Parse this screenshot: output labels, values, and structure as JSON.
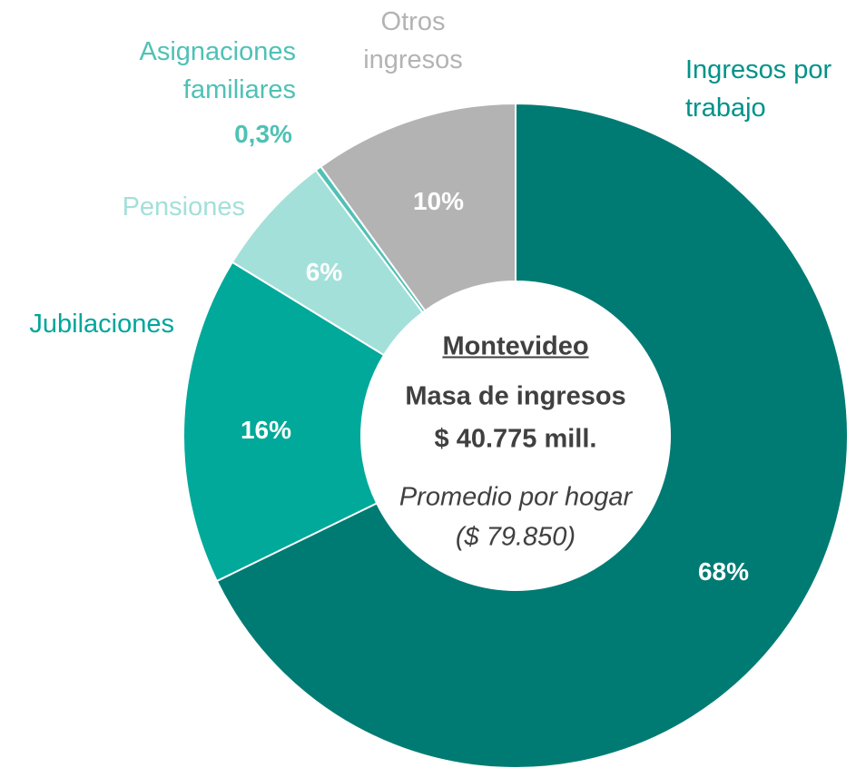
{
  "chart_data": {
    "type": "donut",
    "categories": [
      "Ingresos por trabajo",
      "Jubilaciones",
      "Pensiones",
      "Asignaciones familiares",
      "Otros ingresos"
    ],
    "values": [
      68,
      16,
      6,
      0.3,
      10
    ],
    "value_labels": [
      "68%",
      "16%",
      "6%",
      "0,3%",
      "10%"
    ],
    "colors": [
      "#007b73",
      "#00a99a",
      "#a3e0d9",
      "#4fc1b5",
      "#b3b3b3"
    ],
    "label_colors": [
      "#00928a",
      "#00a59b",
      "#a3e0d9",
      "#4fc1b5",
      "#b3b3b3"
    ],
    "center_text": {
      "title": "Montevideo",
      "line1": "Masa de ingresos",
      "line2": "$ 40.775 mill.",
      "line3": "Promedio por hogar",
      "line4": "($ 79.850)"
    }
  }
}
